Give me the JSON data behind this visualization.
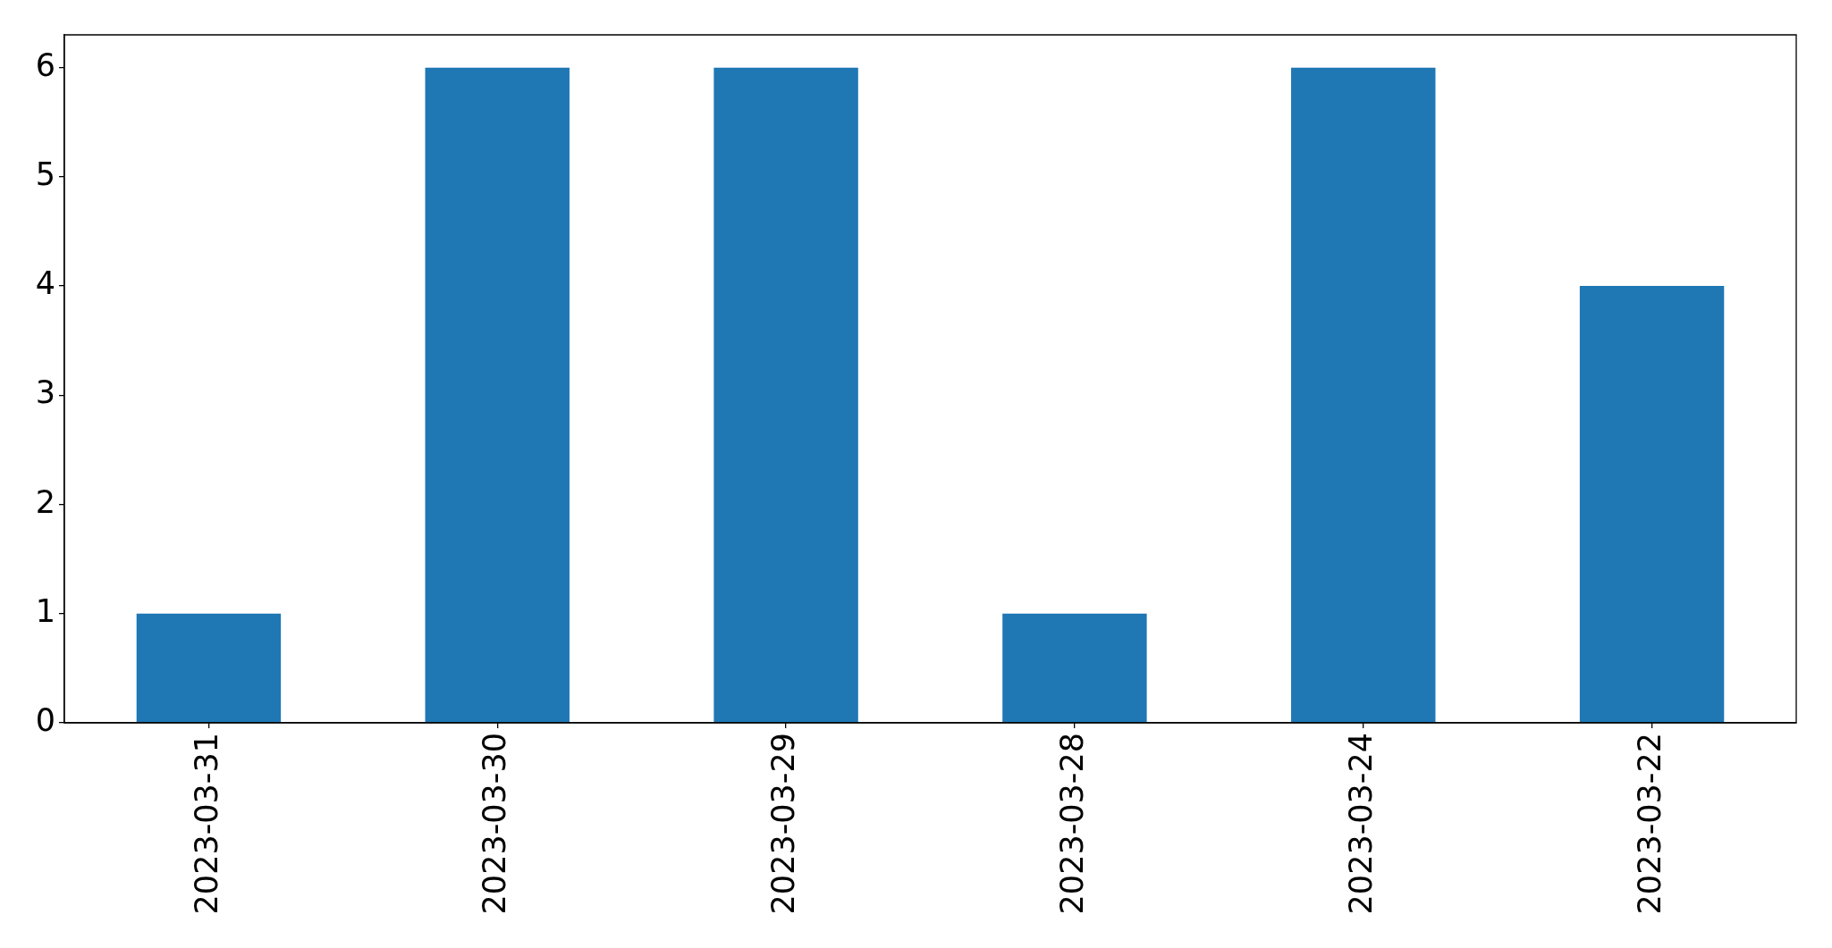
{
  "chart_data": {
    "type": "bar",
    "categories": [
      "2023-03-31",
      "2023-03-30",
      "2023-03-29",
      "2023-03-28",
      "2023-03-24",
      "2023-03-22"
    ],
    "values": [
      1,
      6,
      6,
      1,
      6,
      4
    ],
    "color": "#1f77b4",
    "ylim": [
      0,
      6.3
    ],
    "yticks": [
      0,
      1,
      2,
      3,
      4,
      5,
      6
    ]
  }
}
